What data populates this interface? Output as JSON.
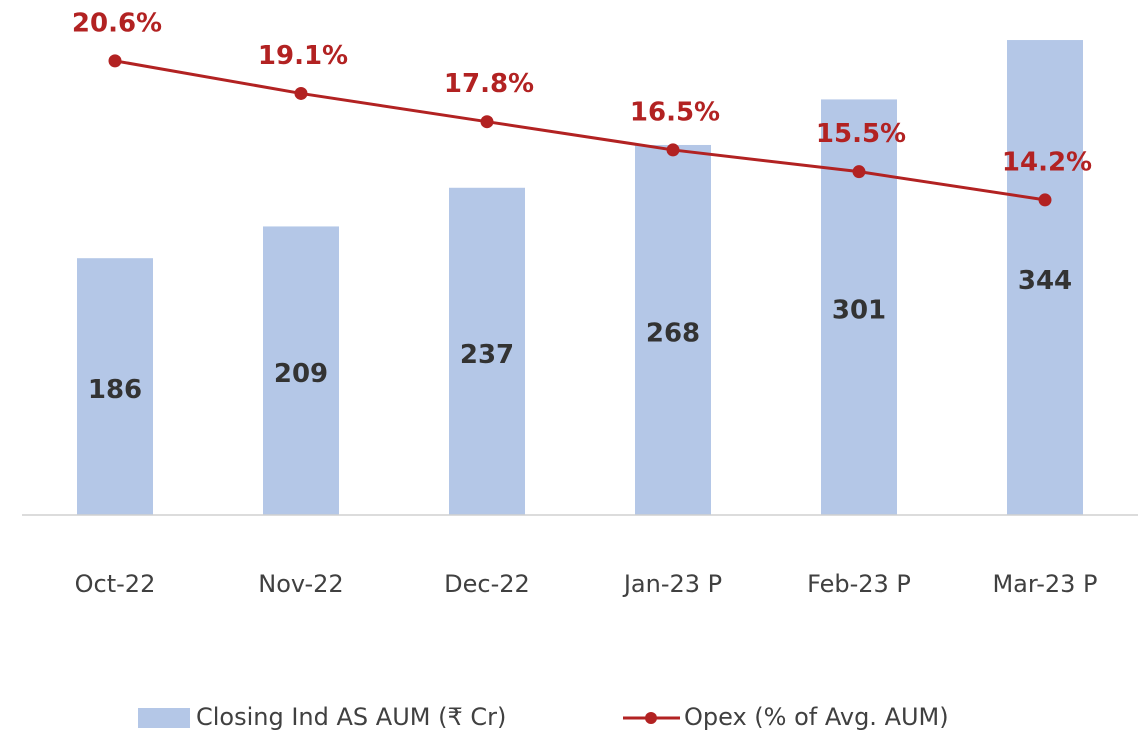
{
  "chart_data": {
    "type": "bar",
    "categories": [
      "Oct-22",
      "Nov-22",
      "Dec-22",
      "Jan-23 P",
      "Feb-23 P",
      "Mar-23 P"
    ],
    "series": [
      {
        "name": "Closing Ind AS AUM (₹ Cr)",
        "type": "bar",
        "color": "#b4c7e7",
        "values": [
          186,
          209,
          237,
          268,
          301,
          344
        ]
      },
      {
        "name": "Opex (% of Avg. AUM)",
        "type": "line",
        "axis": "y2",
        "color": "#b22222",
        "values": [
          20.6,
          19.1,
          17.8,
          16.5,
          15.5,
          14.2
        ],
        "value_labels": [
          "20.6%",
          "19.1%",
          "17.8%",
          "16.5%",
          "15.5%",
          "14.2%"
        ]
      }
    ],
    "ylim": [
      0,
      373
    ],
    "y2lim": [
      -0.3,
      23.4
    ],
    "legend": "bottom"
  }
}
